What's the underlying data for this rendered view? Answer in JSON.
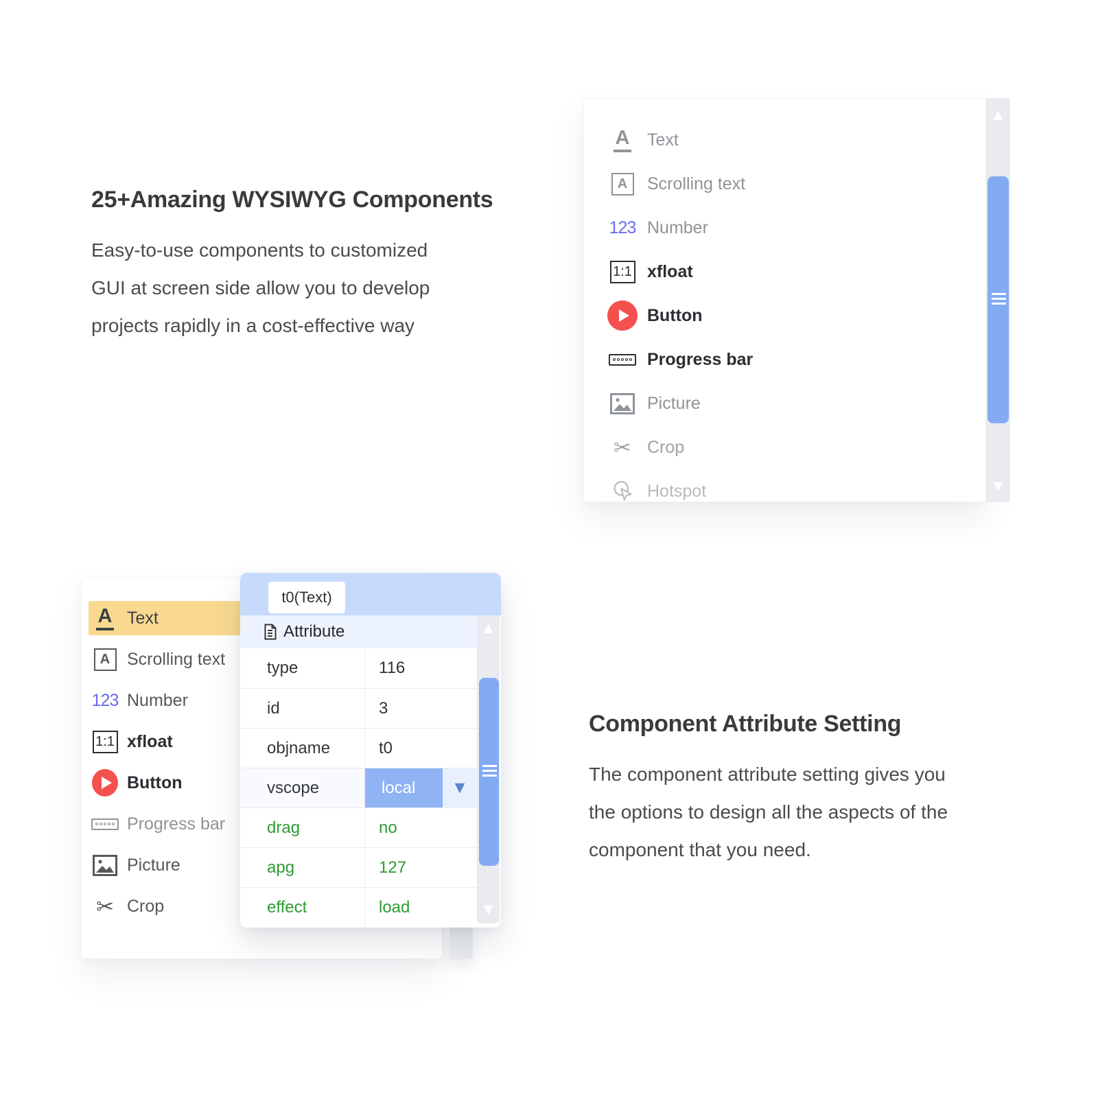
{
  "colors": {
    "scroll-thumb": "#82abf3",
    "scroll-track": "#e9ebef",
    "header-blue": "#c6dafc",
    "row-blue": "#edf3fe",
    "cell-blue": "#8fb3f3",
    "dd-zone": "#e8f0fd",
    "dd-arrow": "#5c84c8",
    "green": "#2e9b33",
    "yellow": "#f9d98f",
    "red": "#f3504e",
    "indigo": "#6b6bf1"
  },
  "icons": {
    "scroll-up-icon": "▲",
    "scroll-down-icon": "▼",
    "dropdown-arrow-icon": "▼",
    "crop-glyph": "✂"
  },
  "features": {
    "components": {
      "heading": "25+Amazing WYSIWYG Components",
      "body_lines": [
        "Easy-to-use components to customized",
        "GUI at screen side allow you to develop",
        "projects rapidly in a cost-effective way"
      ]
    },
    "attribute": {
      "heading": "Component Attribute Setting",
      "body_lines": [
        "The component attribute setting gives you",
        "the options to design all the aspects of the",
        "component that you need."
      ]
    }
  },
  "top_component_list": {
    "items": [
      {
        "label": "Text",
        "icon": "text-icon",
        "state": "muted"
      },
      {
        "label": "Scrolling text",
        "icon": "scrolling-text-icon",
        "state": "muted"
      },
      {
        "label": "Number",
        "icon": "number-icon",
        "state": "muted"
      },
      {
        "label": "xfloat",
        "icon": "xfloat-icon",
        "state": "strong"
      },
      {
        "label": "Button",
        "icon": "button-icon",
        "state": "strong"
      },
      {
        "label": "Progress bar",
        "icon": "progress-bar-icon",
        "state": "strong"
      },
      {
        "label": "Picture",
        "icon": "picture-icon",
        "state": "muted"
      },
      {
        "label": "Crop",
        "icon": "crop-icon",
        "state": "faded"
      },
      {
        "label": "Hotspot",
        "icon": "hotspot-icon",
        "state": "faded2"
      }
    ]
  },
  "bottom_component_list": {
    "items": [
      {
        "label": "Text",
        "icon": "text-icon",
        "state": "selected"
      },
      {
        "label": "Scrolling text",
        "icon": "scrolling-text-icon",
        "state": "normal"
      },
      {
        "label": "Number",
        "icon": "number-icon",
        "state": "normal"
      },
      {
        "label": "xfloat",
        "icon": "xfloat-icon",
        "state": "strong"
      },
      {
        "label": "Button",
        "icon": "button-icon",
        "state": "strong"
      },
      {
        "label": "Progress bar",
        "icon": "progress-bar-icon",
        "state": "muted"
      },
      {
        "label": "Picture",
        "icon": "picture-icon",
        "state": "normal"
      },
      {
        "label": "Crop",
        "icon": "crop-icon",
        "state": "normal"
      }
    ]
  },
  "attribute_panel": {
    "tab_label": "t0(Text)",
    "section_label": "Attribute",
    "rows": [
      {
        "key": "type",
        "value": "116",
        "style": "normal"
      },
      {
        "key": "id",
        "value": "3",
        "style": "normal"
      },
      {
        "key": "objname",
        "value": "t0",
        "style": "normal"
      },
      {
        "key": "vscope",
        "value": "local",
        "style": "dropdown"
      },
      {
        "key": "drag",
        "value": "no",
        "style": "green"
      },
      {
        "key": "apg",
        "value": "127",
        "style": "green"
      },
      {
        "key": "effect",
        "value": "load",
        "style": "green"
      }
    ]
  }
}
